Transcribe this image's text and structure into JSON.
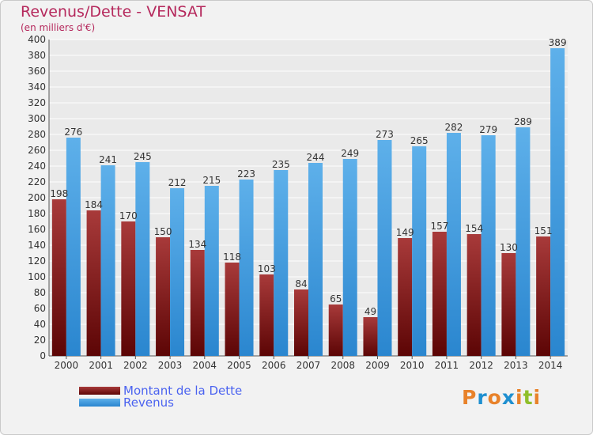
{
  "chart": {
    "title": "Revenus/Dette - VENSAT",
    "subtitle": "(en milliers d'€)"
  },
  "colors": {
    "dette_top": "#a83a3a",
    "dette_bottom": "#5c0505",
    "revenus_top": "#5eb0ea",
    "revenus_bottom": "#2a86cf",
    "title": "#b5285c",
    "legend_text": "#4b63f0",
    "grid": "#ffffff",
    "plot_bg": "#eaeaea"
  },
  "legend": {
    "dette_label": "Montant de la Dette",
    "revenus_label": "Revenus"
  },
  "logo": {
    "text": "Proxiti",
    "letter_colors": [
      "#e8822a",
      "#1e8fd0",
      "#e8822a",
      "#1e8fd0",
      "#e8822a",
      "#8fbf2a",
      "#e8822a"
    ]
  },
  "chart_data": {
    "type": "bar",
    "title": "Revenus/Dette - VENSAT",
    "subtitle": "(en milliers d'€)",
    "categories": [
      "2000",
      "2001",
      "2002",
      "2003",
      "2004",
      "2005",
      "2006",
      "2007",
      "2008",
      "2009",
      "2010",
      "2011",
      "2012",
      "2013",
      "2014"
    ],
    "series": [
      {
        "name": "Montant de la Dette",
        "values": [
          198,
          184,
          170,
          150,
          134,
          118,
          103,
          84,
          65,
          49,
          149,
          157,
          154,
          130,
          151
        ]
      },
      {
        "name": "Revenus",
        "values": [
          276,
          241,
          245,
          212,
          215,
          223,
          235,
          244,
          249,
          273,
          265,
          282,
          279,
          289,
          389
        ]
      }
    ],
    "ylim": [
      0,
      400
    ],
    "yticks": [
      0,
      20,
      40,
      60,
      80,
      100,
      120,
      140,
      160,
      180,
      200,
      220,
      240,
      260,
      280,
      300,
      320,
      340,
      360,
      380,
      400
    ],
    "grid": true,
    "legend_position": "bottom-left"
  }
}
